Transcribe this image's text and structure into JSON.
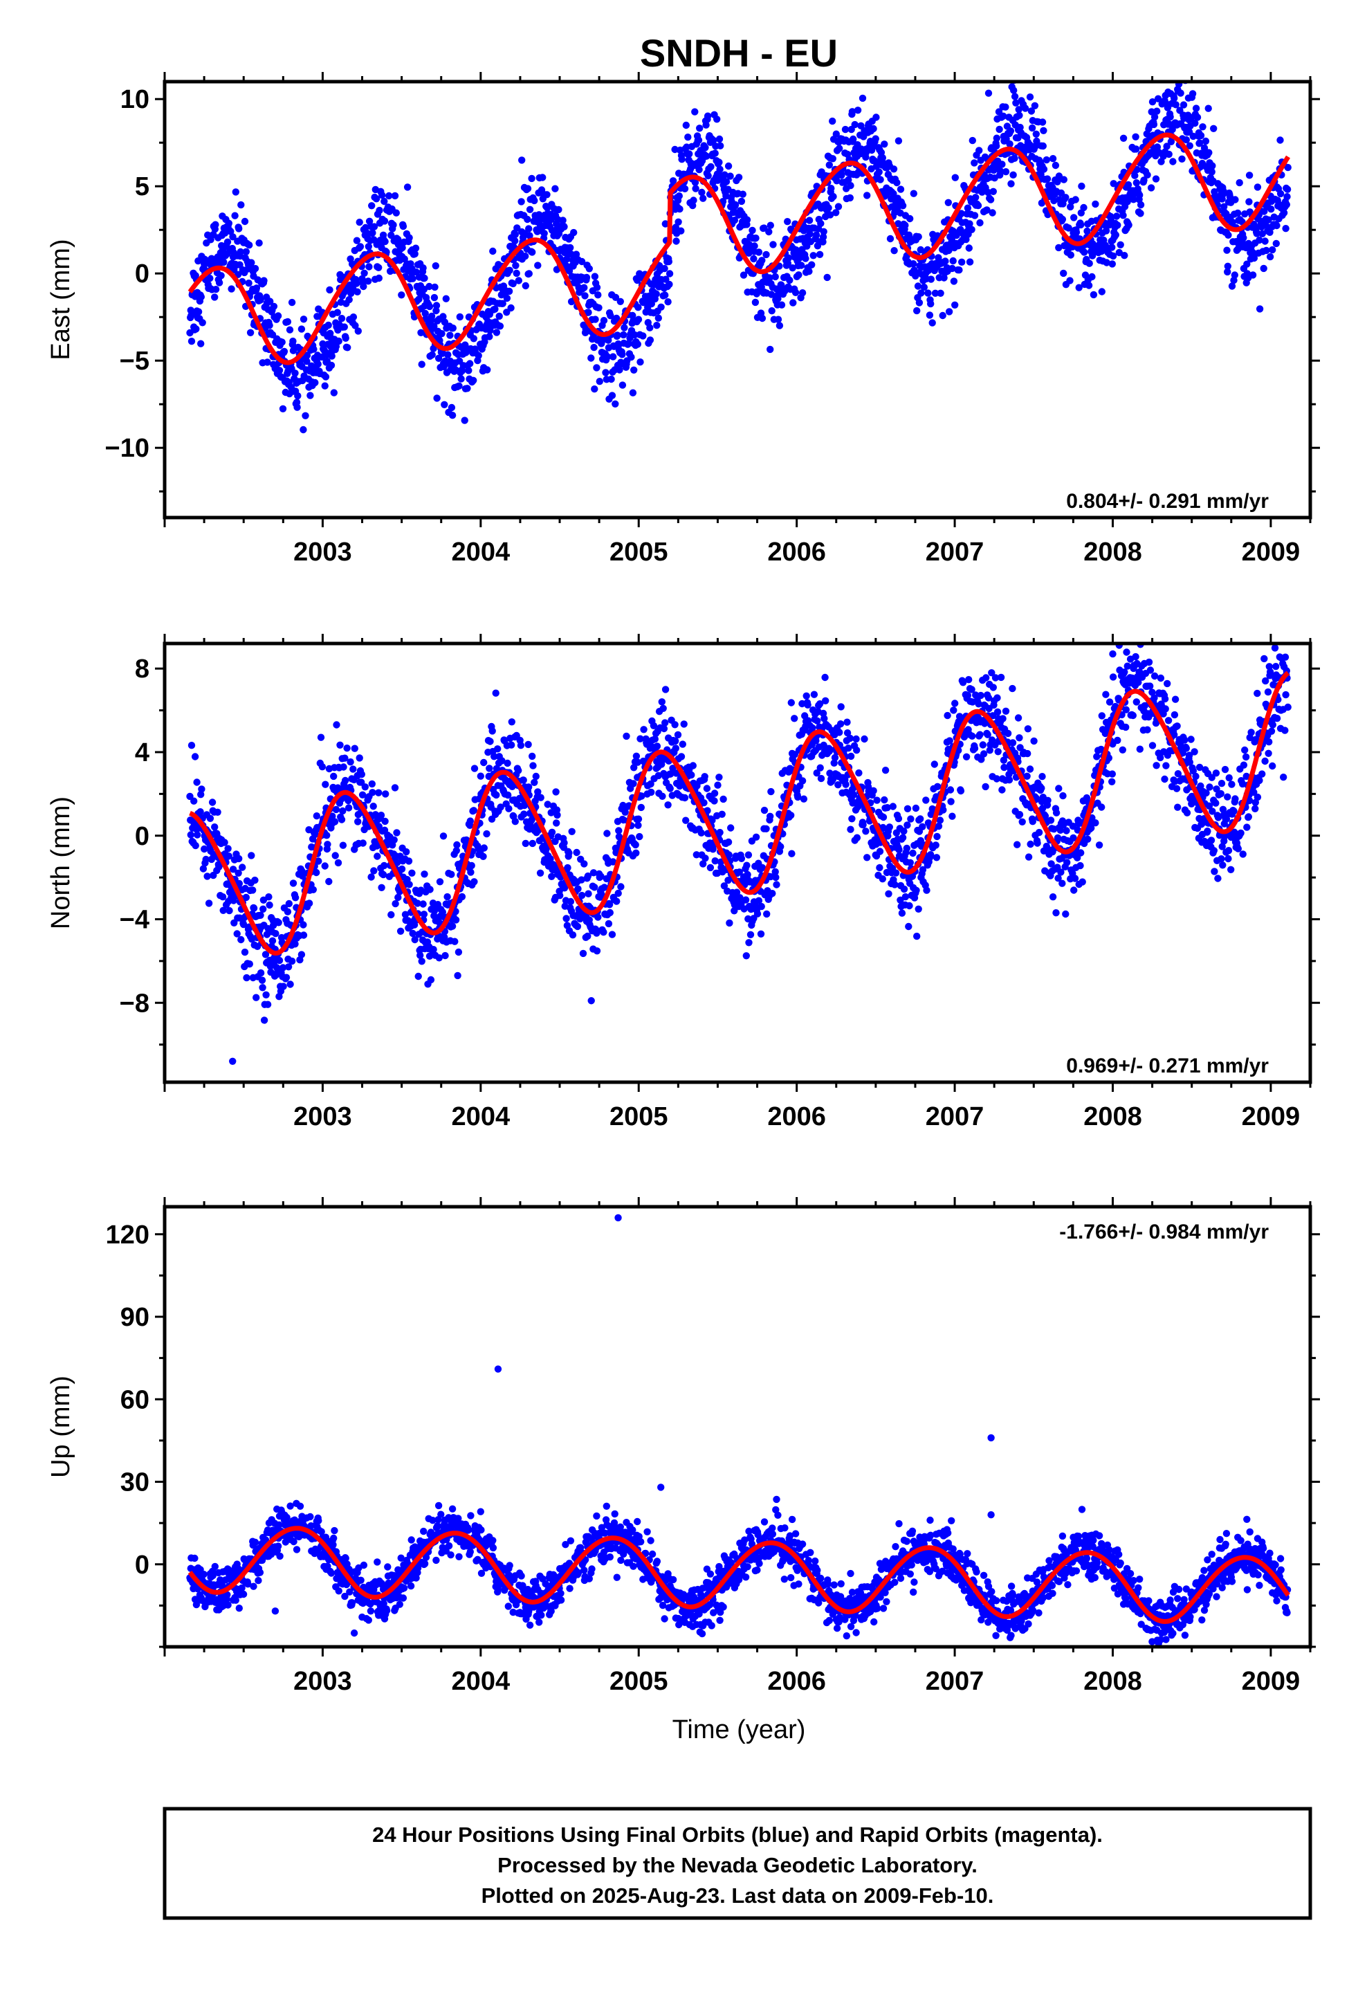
{
  "title": "SNDH - EU",
  "chart_data": [
    {
      "type": "scatter",
      "panel": "east",
      "ylabel": "East (mm)",
      "xlabel": "",
      "xlim": [
        2002.0,
        2009.25
      ],
      "ylim": [
        -14,
        11
      ],
      "xticks": [
        2003,
        2004,
        2005,
        2006,
        2007,
        2008,
        2009
      ],
      "yticks": [
        10,
        5,
        0,
        -5,
        -10
      ],
      "ytick_labels": [
        "10",
        "5",
        "0",
        "−5",
        "−10"
      ],
      "rate_text": "0.804+/- 0.291 mm/yr",
      "rate_pos": "bottom-right",
      "model": {
        "a": -2.6,
        "rate": 0.804,
        "offsets": [
          {
            "t": 2005.2,
            "d": 2.8
          }
        ],
        "c1": -0.98,
        "s1": 2.68,
        "c2": 0.25,
        "s2": -0.1
      },
      "scatter_resid": {
        "sigma": 1.3,
        "extra_c1": -1.7,
        "extra_s1": -0.1
      },
      "outliers": [
        {
          "x": 2004.26,
          "y": 6.5
        },
        {
          "x": 2004.26,
          "y": 1.6
        },
        {
          "x": 2008.35,
          "y": 10.4
        },
        {
          "x": 2008.45,
          "y": 8.9
        }
      ]
    },
    {
      "type": "scatter",
      "panel": "north",
      "ylabel": "North (mm)",
      "xlabel": "",
      "xlim": [
        2002.0,
        2009.25
      ],
      "ylim": [
        -11.8,
        9.2
      ],
      "xticks": [
        2003,
        2004,
        2005,
        2006,
        2007,
        2008,
        2009
      ],
      "yticks": [
        8,
        4,
        0,
        -4,
        -8
      ],
      "ytick_labels": [
        "8",
        "4",
        "0",
        "−4",
        "−8"
      ],
      "rate_text": "0.969+/- 0.271 mm/yr",
      "rate_pos": "bottom-right",
      "model": {
        "a": -2.45,
        "rate": 0.969,
        "offsets": [],
        "c1": 1.6,
        "s1": 3.15,
        "c2": 0.4,
        "s2": 0.2
      },
      "scatter_resid": {
        "sigma": 1.2,
        "extra_c1": 0.0,
        "extra_s1": 0.0
      },
      "outliers": [
        {
          "x": 2002.33,
          "y": 0.1
        },
        {
          "x": 2002.43,
          "y": -10.8
        },
        {
          "x": 2005.17,
          "y": 7.0
        },
        {
          "x": 2008.0,
          "y": 8.7
        },
        {
          "x": 2009.08,
          "y": 2.8
        },
        {
          "x": 2004.7,
          "y": -7.9
        }
      ]
    },
    {
      "type": "scatter",
      "panel": "up",
      "ylabel": "Up (mm)",
      "xlabel": "Time (year)",
      "xlim": [
        2002.0,
        2009.25
      ],
      "ylim": [
        -30,
        130
      ],
      "xticks": [
        2003,
        2004,
        2005,
        2006,
        2007,
        2008,
        2009
      ],
      "yticks": [
        120,
        90,
        60,
        30,
        0
      ],
      "ytick_labels": [
        "120",
        "90",
        "60",
        "30",
        "0"
      ],
      "rate_text": "-1.766+/- 0.984 mm/yr",
      "rate_pos": "top-right",
      "model": {
        "a": 2.7,
        "rate": -1.766,
        "offsets": [],
        "c1": 6.0,
        "s1": -10.5,
        "c2": 0.5,
        "s2": 0.3
      },
      "scatter_resid": {
        "sigma": 4.2,
        "extra_c1": 0.0,
        "extra_s1": 0.0
      },
      "outliers": [
        {
          "x": 2004.87,
          "y": 126
        },
        {
          "x": 2004.11,
          "y": 71
        },
        {
          "x": 2007.23,
          "y": 46
        },
        {
          "x": 2007.23,
          "y": 18
        },
        {
          "x": 2005.14,
          "y": 28
        },
        {
          "x": 2003.2,
          "y": -25
        },
        {
          "x": 2002.7,
          "y": -17
        }
      ]
    }
  ],
  "series": {
    "observations_color": "#0000ff",
    "model_color": "#ff0000",
    "time_range": [
      2002.16,
      2009.11
    ]
  },
  "footer": {
    "lines": [
      "24 Hour Positions Using Final Orbits (blue) and Rapid Orbits (magenta).",
      "Processed by the Nevada Geodetic Laboratory.",
      "Plotted on 2025-Aug-23. Last data on 2009-Feb-10."
    ]
  }
}
